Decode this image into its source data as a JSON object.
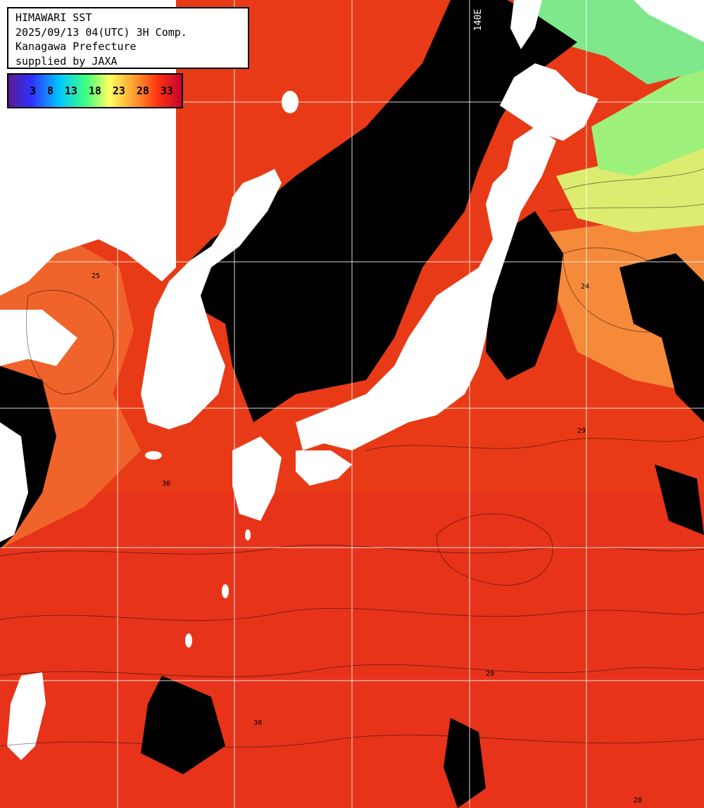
{
  "title_block": {
    "line1": "HIMAWARI SST",
    "line2": "2025/09/13 04(UTC) 3H Comp.",
    "line3": "Kanagawa Prefecture",
    "line4": "supplied by JAXA"
  },
  "legend": {
    "ticks": [
      "3",
      "8",
      "13",
      "18",
      "23",
      "28",
      "33"
    ],
    "colors": [
      "#5a1a8a",
      "#3030ff",
      "#00c8ff",
      "#40ff80",
      "#ffff60",
      "#ffa030",
      "#ff3010",
      "#c00030"
    ]
  },
  "grid_labels": {
    "lon_140": "140E"
  },
  "contour_values": [
    "25",
    "24",
    "29",
    "30",
    "29",
    "30",
    "28"
  ],
  "colors": {
    "land": "#ffffff",
    "no_data": "#000000",
    "sst_warm": "#ee3514",
    "sst_mid": "#f26a2a",
    "sst_cool": "#f6a35a",
    "sst_cold": "#a8f07a",
    "grid": "#ffffff"
  }
}
